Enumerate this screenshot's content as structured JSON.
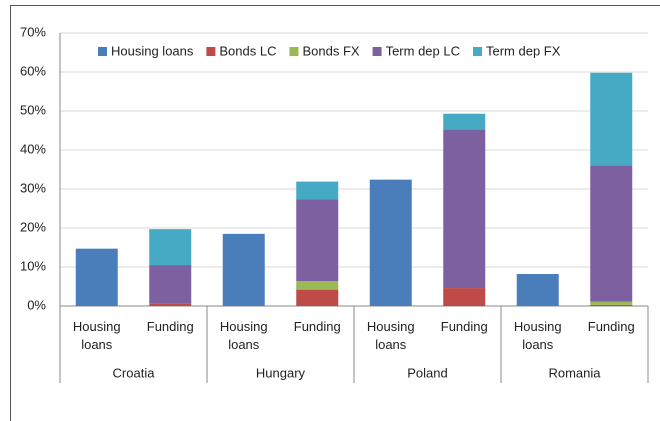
{
  "chart_data": {
    "type": "stacked-bar",
    "categories": [
      "Housing loans",
      "Funding",
      "Housing loans",
      "Funding",
      "Housing loans",
      "Funding",
      "Housing loans",
      "Funding"
    ],
    "groups": [
      "Croatia",
      "Hungary",
      "Poland",
      "Romania"
    ],
    "series": [
      {
        "name": "Housing loans",
        "color": "#4a7ebb",
        "values": [
          14.7,
          null,
          18.5,
          null,
          32.4,
          null,
          8.2,
          null
        ]
      },
      {
        "name": "Bonds LC",
        "color": "#be4b48",
        "values": [
          null,
          0.7,
          null,
          4.2,
          null,
          4.6,
          null,
          0.3
        ]
      },
      {
        "name": "Bonds FX",
        "color": "#98b954",
        "values": [
          null,
          0,
          null,
          2.2,
          null,
          0,
          null,
          0.8
        ]
      },
      {
        "name": "Term dep LC",
        "color": "#7d60a0",
        "values": [
          null,
          9.8,
          null,
          20.9,
          null,
          40.7,
          null,
          34.9
        ]
      },
      {
        "name": "Term dep FX",
        "color": "#46aac5",
        "values": [
          null,
          9.2,
          null,
          4.6,
          null,
          4.0,
          null,
          23.8
        ]
      }
    ],
    "ylim": [
      0,
      70
    ],
    "yticks": [
      {
        "value": 0,
        "label": "0%"
      },
      {
        "value": 10,
        "label": "10%"
      },
      {
        "value": 20,
        "label": "20%"
      },
      {
        "value": 30,
        "label": "30%"
      },
      {
        "value": 40,
        "label": "40%"
      },
      {
        "value": 50,
        "label": "50%"
      },
      {
        "value": 60,
        "label": "60%"
      },
      {
        "value": 70,
        "label": "70%"
      }
    ],
    "grid": true,
    "legend": "top"
  }
}
